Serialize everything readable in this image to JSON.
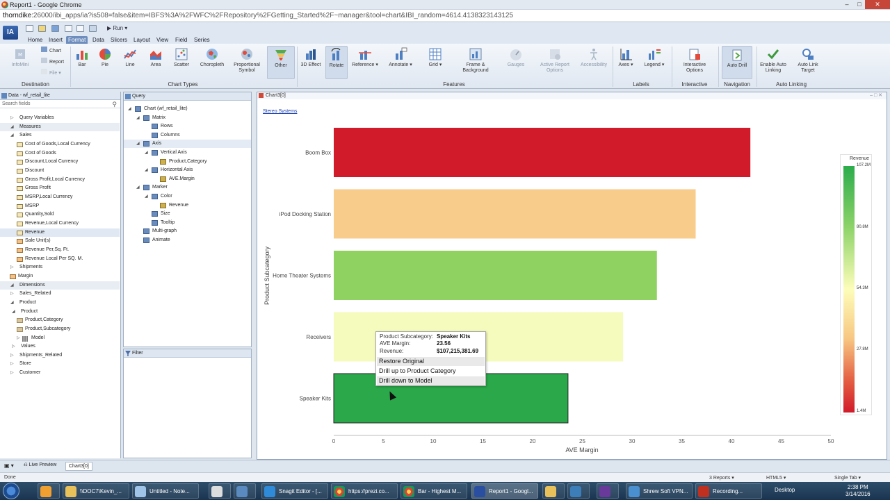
{
  "window": {
    "title": "Report1 - Google Chrome",
    "url_host": "thorndike",
    "url_rest": ":26000/ibi_apps/ia?is508=false&item=IBFS%3A%2FWFC%2FRepository%2FGetting_Started%2F~manager&tool=chart&IBI_random=4614.4138323143125"
  },
  "app": {
    "logo": "IA",
    "run_label": "Run",
    "tabs": [
      "Home",
      "Insert",
      "Format",
      "Data",
      "Slicers",
      "Layout",
      "View",
      "Field",
      "Series"
    ],
    "active_tab": "Format"
  },
  "ribbon": {
    "destination": {
      "infomini": "InfoMini",
      "chart": "Chart",
      "report": "Report",
      "file": "File",
      "group": "Destination"
    },
    "chart_types": {
      "items": [
        "Bar",
        "Pie",
        "Line",
        "Area",
        "Scatter",
        "Choropleth",
        "Proportional Symbol",
        "Other"
      ],
      "group": "Chart Types"
    },
    "features": {
      "items": [
        "3D Effect",
        "Rotate",
        "Reference",
        "Annotate",
        "Grid",
        "Frame & Background",
        "Gauges",
        "Active Report Options",
        "Accessibility"
      ],
      "group": "Features"
    },
    "labels": {
      "items": [
        "Axes",
        "Legend"
      ],
      "group": "Labels"
    },
    "interactive": {
      "items": [
        "Interactive Options"
      ],
      "group": "Interactive"
    },
    "navigation": {
      "items": [
        "Auto Drill"
      ],
      "group": "Navigation"
    },
    "auto_linking": {
      "items": [
        "Enable Auto Linking",
        "Auto Link Target"
      ],
      "group": "Auto Linking"
    }
  },
  "data_panel": {
    "header": "Data - wf_retail_lite",
    "search_placeholder": "Search fields",
    "rows": [
      {
        "label": "Query Variables",
        "level": 1,
        "arrow": "▷"
      },
      {
        "label": "Measures",
        "level": 1,
        "arrow": "◢"
      },
      {
        "label": "Sales",
        "level": 1,
        "arrow": "◢"
      },
      {
        "label": "Cost of Goods,Local Currency",
        "level": 3,
        "icon": "m"
      },
      {
        "label": "Cost of Goods",
        "level": 3,
        "icon": "m"
      },
      {
        "label": "Discount,Local Currency",
        "level": 3,
        "icon": "m"
      },
      {
        "label": "Discount",
        "level": 3,
        "icon": "m"
      },
      {
        "label": "Gross Profit,Local Currency",
        "level": 3,
        "icon": "m"
      },
      {
        "label": "Gross Profit",
        "level": 3,
        "icon": "m"
      },
      {
        "label": "MSRP,Local Currency",
        "level": 3,
        "icon": "m"
      },
      {
        "label": "MSRP",
        "level": 3,
        "icon": "m"
      },
      {
        "label": "Quantity,Sold",
        "level": 3,
        "icon": "m"
      },
      {
        "label": "Revenue,Local Currency",
        "level": 3,
        "icon": "m"
      },
      {
        "label": "Revenue",
        "level": 3,
        "icon": "m"
      },
      {
        "label": "Sale Unit(s)",
        "level": 3,
        "icon": "c"
      },
      {
        "label": "Revenue Per,Sq. Ft.",
        "level": 3,
        "icon": "c"
      },
      {
        "label": "Revenue Local Per SQ. M.",
        "level": 3,
        "icon": "c"
      },
      {
        "label": "Shipments",
        "level": 1,
        "arrow": "▷"
      },
      {
        "label": "Margin",
        "level": 2,
        "icon": "c"
      },
      {
        "label": "Dimensions",
        "level": 1,
        "arrow": "◢"
      },
      {
        "label": "Sales_Related",
        "level": 1,
        "arrow": "▷"
      },
      {
        "label": "Product",
        "level": 1,
        "arrow": "◢"
      },
      {
        "label": "Product",
        "level": 2,
        "arrow": "◢"
      },
      {
        "label": "Product,Category",
        "level": 3,
        "icon": "d"
      },
      {
        "label": "Product,Subcategory",
        "level": 3,
        "icon": "d"
      },
      {
        "label": "Model",
        "level": 3,
        "icon": "h",
        "arrow": "▷"
      },
      {
        "label": "Values",
        "level": 2,
        "arrow": "▷"
      },
      {
        "label": "Shipments_Related",
        "level": 1,
        "arrow": "▷"
      },
      {
        "label": "Store",
        "level": 1,
        "arrow": "▷"
      },
      {
        "label": "Customer",
        "level": 1,
        "arrow": "▷"
      }
    ]
  },
  "query_panel": {
    "header": "Query",
    "rows": [
      {
        "label": "Chart (wf_retail_lite)",
        "level": 0,
        "arrow": "◢"
      },
      {
        "label": "Matrix",
        "level": 1,
        "arrow": "◢"
      },
      {
        "label": "Rows",
        "level": 2
      },
      {
        "label": "Columns",
        "level": 2
      },
      {
        "label": "Axis",
        "level": 1,
        "arrow": "◢"
      },
      {
        "label": "Vertical Axis",
        "level": 2,
        "arrow": "◢"
      },
      {
        "label": "Product,Category",
        "level": 3,
        "field": true
      },
      {
        "label": "Horizontal Axis",
        "level": 2,
        "arrow": "◢"
      },
      {
        "label": "AVE.Margin",
        "level": 3,
        "field": true
      },
      {
        "label": "Marker",
        "level": 1,
        "arrow": "◢"
      },
      {
        "label": "Color",
        "level": 2,
        "arrow": "◢"
      },
      {
        "label": "Revenue",
        "level": 3,
        "field": true
      },
      {
        "label": "Size",
        "level": 2
      },
      {
        "label": "Tooltip",
        "level": 2
      },
      {
        "label": "Multi-graph",
        "level": 1
      },
      {
        "label": "Animate",
        "level": 1
      }
    ]
  },
  "filter_panel": {
    "header": "Filter"
  },
  "chart_tab": {
    "label": "Chart3[0]"
  },
  "chart_data": {
    "type": "bar",
    "orientation": "horizontal",
    "title": "Stereo Systems",
    "categories": [
      "Boom Box",
      "iPod Docking Station",
      "Home Theater Systems",
      "Receivers",
      "Speaker Kits"
    ],
    "values": [
      41.9,
      36.4,
      32.5,
      29.1,
      23.56
    ],
    "colors": [
      "#d11b2a",
      "#f8cd8c",
      "#8fd262",
      "#f5fbbc",
      "#2aa84a"
    ],
    "xlabel": "AVE Margin",
    "ylabel": "Product Subcategory",
    "xlim": [
      0,
      50
    ],
    "xticks": [
      0,
      5,
      10,
      15,
      20,
      25,
      30,
      35,
      40,
      45,
      50
    ],
    "legend": {
      "title": "Revenue",
      "labels": [
        "107.2M",
        "80.8M",
        "54.3M",
        "27.8M",
        "1.4M"
      ],
      "placement": "right"
    }
  },
  "tooltip": {
    "rows": [
      {
        "k": "Product Subcategory:",
        "v": "Speaker Kits"
      },
      {
        "k": "AVE Margin:",
        "v": "23.56"
      },
      {
        "k": "Revenue:",
        "v": "$107,215,381.69"
      }
    ],
    "menu": [
      "Restore Original",
      "Drill up to Product Category",
      "Drill down to Model"
    ]
  },
  "bottom": {
    "live_preview": "Live Preview",
    "chart_tab": "Chart3[0]"
  },
  "status": {
    "left": "Done",
    "reports": "3 Reports",
    "html5": "HTML5",
    "single_tab": "Single Tab"
  },
  "taskbar": {
    "items": [
      "\\\\DOC7\\Kevin_...",
      "Untitled - Note...",
      "Snagit Editor - [...",
      "https://prezi.co...",
      "Bar - Highest M...",
      "Report1 - Googl...",
      "Shrew Soft VPN...",
      "Recording..."
    ],
    "desktop": "Desktop",
    "time": "2:38 PM",
    "date": "3/14/2016"
  }
}
